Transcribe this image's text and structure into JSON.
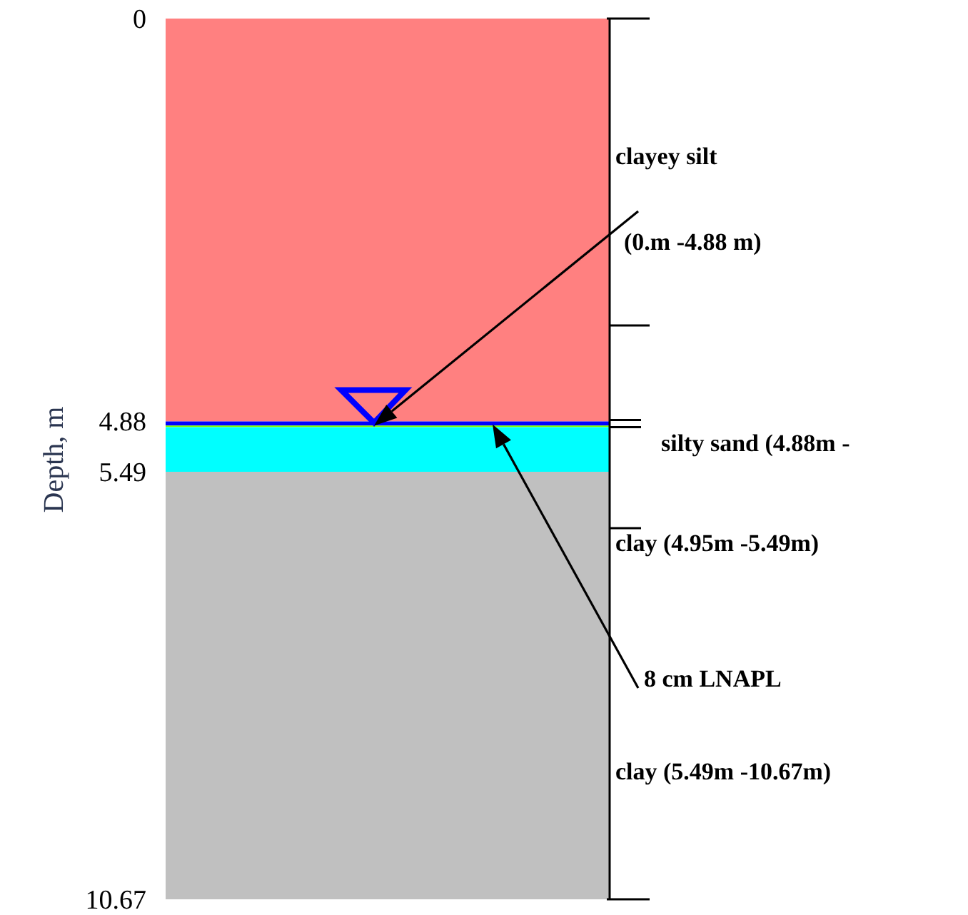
{
  "chart_data": {
    "type": "bar",
    "stacked": true,
    "ylabel": "Depth, m",
    "categories": [
      null
    ],
    "series": [
      {
        "color": "#ff8080",
        "values": [
          4.88
        ]
      },
      {
        "color": "#0000ff",
        "values": [
          0.05
        ]
      },
      {
        "color": "#80ff00",
        "values": [
          0.02
        ]
      },
      {
        "color": "#00ffff",
        "values": [
          0.54
        ]
      },
      {
        "color": "#c0c0c0",
        "values": [
          5.18
        ]
      }
    ],
    "ylim": [
      10.67,
      0
    ],
    "yticks": [
      0,
      4.88,
      5.49,
      10.67
    ],
    "tick_labels": "y",
    "annotations": [
      "clayey silt",
      "(0.m -4.88 m)",
      "silty  sand  (4.88m  -",
      "clay (4.95m -5.49m)",
      "8 cm LNAPL",
      "clay (5.49m -10.67m)"
    ]
  }
}
